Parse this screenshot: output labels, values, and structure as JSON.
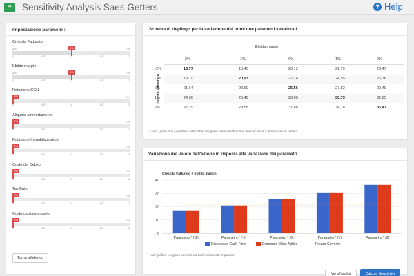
{
  "app": {
    "title": "Sensitivity Analysis Saes Getters",
    "help_label": "Help",
    "menu_icon": "≡"
  },
  "left": {
    "title": "Impostazione parametri :",
    "back_label": "Torna all'elenco",
    "params": [
      {
        "label": "Crescita Fatturato",
        "min": "0%",
        "max": "2%",
        "value": 1,
        "bubble": "1%",
        "ticks": [
          "0",
          "0.5",
          "1",
          "1.5",
          "2"
        ]
      },
      {
        "label": "Ebitda margin",
        "min": "0%",
        "max": "2%",
        "value": 1,
        "bubble": "1%",
        "ticks": [
          "0",
          "0.5",
          "1",
          "1.5",
          "2"
        ]
      },
      {
        "label": "Rotazione CCN",
        "min": "0%",
        "max": "2%",
        "value": 0,
        "bubble": "0%",
        "ticks": [
          "0",
          "0.5",
          "1",
          "1.5",
          "2"
        ]
      },
      {
        "label": "Aliquota ammortamento",
        "min": "0%",
        "max": "2%",
        "value": 0,
        "bubble": "0%",
        "ticks": [
          "0",
          "0.5",
          "1",
          "1.5",
          "2"
        ]
      },
      {
        "label": "Rotazione Immobilizzazioni",
        "min": "0%",
        "max": "2%",
        "value": 0,
        "bubble": "0%",
        "ticks": [
          "0",
          "0.5",
          "1",
          "1.5",
          "2"
        ]
      },
      {
        "label": "Costo del Debito",
        "min": "0%",
        "max": "2%",
        "value": 0,
        "bubble": "0%",
        "ticks": [
          "0",
          "0.5",
          "1",
          "1.5",
          "2"
        ]
      },
      {
        "label": "Tax Rate",
        "min": "0%",
        "max": "2%",
        "value": 0,
        "bubble": "0%",
        "ticks": [
          "0",
          "0.5",
          "1",
          "1.5",
          "2"
        ]
      },
      {
        "label": "Costo capitale proprio",
        "min": "0%",
        "max": "2%",
        "value": 0,
        "bubble": "0%",
        "ticks": [
          "0",
          "0.5",
          "1",
          "1.5",
          "2"
        ]
      }
    ]
  },
  "grid": {
    "title": "Schema di riepilogo per la variazione dei primi due parametri valorizzati",
    "col_header": "Ebitda margin",
    "row_header": "Crescita Fatturato",
    "columns": [
      "-2%",
      "-1%",
      "0%",
      "1%",
      "2%"
    ],
    "rows": [
      {
        "label": "-2%",
        "cells": [
          "16,77",
          "18,45",
          "20,12",
          "21,79",
          "23,47"
        ],
        "bold": 0
      },
      {
        "label": "-1%",
        "cells": [
          "19,11",
          "20,93",
          "22,74",
          "24,55",
          "26,36"
        ],
        "bold": 1
      },
      {
        "label": "0%",
        "cells": [
          "21,64",
          "23,60",
          "25,56",
          "27,52",
          "29,49"
        ],
        "bold": 2
      },
      {
        "label": "1%",
        "cells": [
          "24,36",
          "26,48",
          "28,60",
          "30,73",
          "32,85"
        ],
        "bold": 3
      },
      {
        "label": "2%",
        "cells": [
          "27,29",
          "29,58",
          "31,88",
          "34,18",
          "36,47"
        ],
        "bold": 4
      }
    ],
    "note": "* solo i primi due parametri valorizzati vengono considerati al fine del calcolo a 2 dimensioni in tabella"
  },
  "chart_panel": {
    "title": "Variazione del valore dell'azione in risposta alla variazione dei parametri",
    "note": "* nel grafico vengono considerati tutti i parametri impostati",
    "back_label": "Vai all'analisi",
    "calc_label": "Calcola Sensitivity"
  },
  "chart_data": {
    "type": "bar",
    "title": "Crescita Fatturato + Ebitda margin",
    "categories": [
      "Parametro * (-2)",
      "Parametro * (-1)",
      "Parametro * (0)",
      "Parametro * (1)",
      "Parametro * (2)"
    ],
    "series": [
      {
        "name": "Discounted Cash Flow",
        "values": [
          16.77,
          20.93,
          25.56,
          30.73,
          36.47
        ],
        "color": "#3a66c9"
      },
      {
        "name": "Economic Value Added",
        "values": [
          16.77,
          20.93,
          25.56,
          30.73,
          36.47
        ],
        "color": "#dd3b1c"
      }
    ],
    "line": {
      "name": "Prezzo Corrente",
      "value": 22,
      "color": "#f0a030"
    },
    "ylim": [
      0,
      40
    ],
    "yticks": [
      0,
      10,
      20,
      30,
      40
    ],
    "grid": true,
    "legend": "bottom"
  }
}
